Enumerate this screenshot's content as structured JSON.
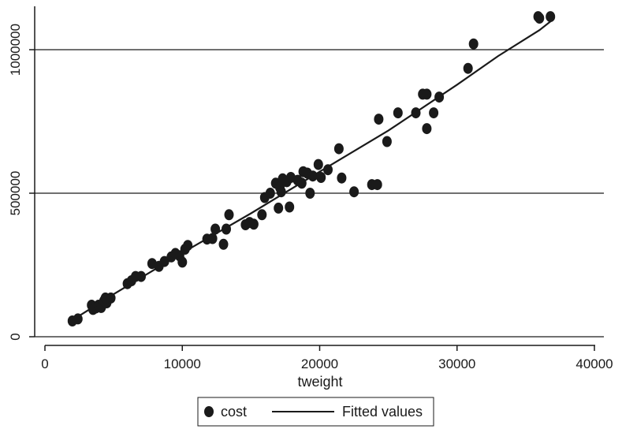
{
  "chart_data": {
    "type": "scatter",
    "title": "",
    "xlabel": "tweight",
    "ylabel": "",
    "xlim": [
      0,
      40000
    ],
    "ylim": [
      0,
      1100000
    ],
    "x_ticks": [
      0,
      10000,
      20000,
      30000,
      40000
    ],
    "x_tick_labels": [
      "0",
      "10000",
      "20000",
      "30000",
      "40000"
    ],
    "y_ticks": [
      0,
      500000,
      1000000
    ],
    "y_tick_labels": [
      "0",
      "500000",
      "1000000"
    ],
    "grid": "horizontal",
    "legend_position": "bottom",
    "legend": [
      "cost",
      "Fitted values"
    ],
    "colors": {
      "points": "#1a1a1a",
      "fit_line": "#1a1a1a"
    },
    "series": [
      {
        "name": "cost",
        "kind": "scatter",
        "points": [
          [
            2000,
            55000
          ],
          [
            2400,
            62000
          ],
          [
            3400,
            110000
          ],
          [
            3500,
            95000
          ],
          [
            3700,
            100000
          ],
          [
            3900,
            110000
          ],
          [
            4100,
            102000
          ],
          [
            4300,
            125000
          ],
          [
            4500,
            118000
          ],
          [
            4600,
            132000
          ],
          [
            4800,
            135000
          ],
          [
            4400,
            135000
          ],
          [
            6000,
            185000
          ],
          [
            6300,
            195000
          ],
          [
            6600,
            210000
          ],
          [
            7000,
            210000
          ],
          [
            7800,
            255000
          ],
          [
            8300,
            245000
          ],
          [
            8700,
            262000
          ],
          [
            9200,
            278000
          ],
          [
            9500,
            290000
          ],
          [
            9800,
            282000
          ],
          [
            10000,
            260000
          ],
          [
            10200,
            305000
          ],
          [
            10400,
            318000
          ],
          [
            11800,
            340000
          ],
          [
            12200,
            342000
          ],
          [
            12400,
            375000
          ],
          [
            13000,
            322000
          ],
          [
            13200,
            375000
          ],
          [
            13400,
            425000
          ],
          [
            14600,
            390000
          ],
          [
            14900,
            398000
          ],
          [
            15200,
            392000
          ],
          [
            15800,
            425000
          ],
          [
            16000,
            485000
          ],
          [
            16400,
            500000
          ],
          [
            16800,
            535000
          ],
          [
            17000,
            448000
          ],
          [
            17100,
            520000
          ],
          [
            17200,
            505000
          ],
          [
            17300,
            550000
          ],
          [
            17600,
            540000
          ],
          [
            17800,
            452000
          ],
          [
            17900,
            555000
          ],
          [
            18400,
            545000
          ],
          [
            18700,
            535000
          ],
          [
            18800,
            575000
          ],
          [
            19100,
            570000
          ],
          [
            19300,
            500000
          ],
          [
            19500,
            560000
          ],
          [
            19900,
            600000
          ],
          [
            20100,
            555000
          ],
          [
            20600,
            582000
          ],
          [
            21400,
            655000
          ],
          [
            21600,
            553000
          ],
          [
            22500,
            505000
          ],
          [
            23800,
            530000
          ],
          [
            24200,
            530000
          ],
          [
            24300,
            758000
          ],
          [
            24900,
            680000
          ],
          [
            25700,
            780000
          ],
          [
            27000,
            780000
          ],
          [
            27500,
            845000
          ],
          [
            27800,
            845000
          ],
          [
            27800,
            725000
          ],
          [
            28300,
            780000
          ],
          [
            28700,
            835000
          ],
          [
            30800,
            935000
          ],
          [
            31200,
            1020000
          ],
          [
            35900,
            1115000
          ],
          [
            36000,
            1110000
          ],
          [
            36800,
            1115000
          ]
        ]
      },
      {
        "name": "Fitted values",
        "kind": "line",
        "points": [
          [
            2000,
            58000
          ],
          [
            5000,
            148000
          ],
          [
            10000,
            292000
          ],
          [
            15000,
            430000
          ],
          [
            20000,
            575000
          ],
          [
            25000,
            718000
          ],
          [
            30000,
            878000
          ],
          [
            33000,
            978000
          ],
          [
            36000,
            1068000
          ],
          [
            36800,
            1098000
          ]
        ]
      }
    ]
  }
}
